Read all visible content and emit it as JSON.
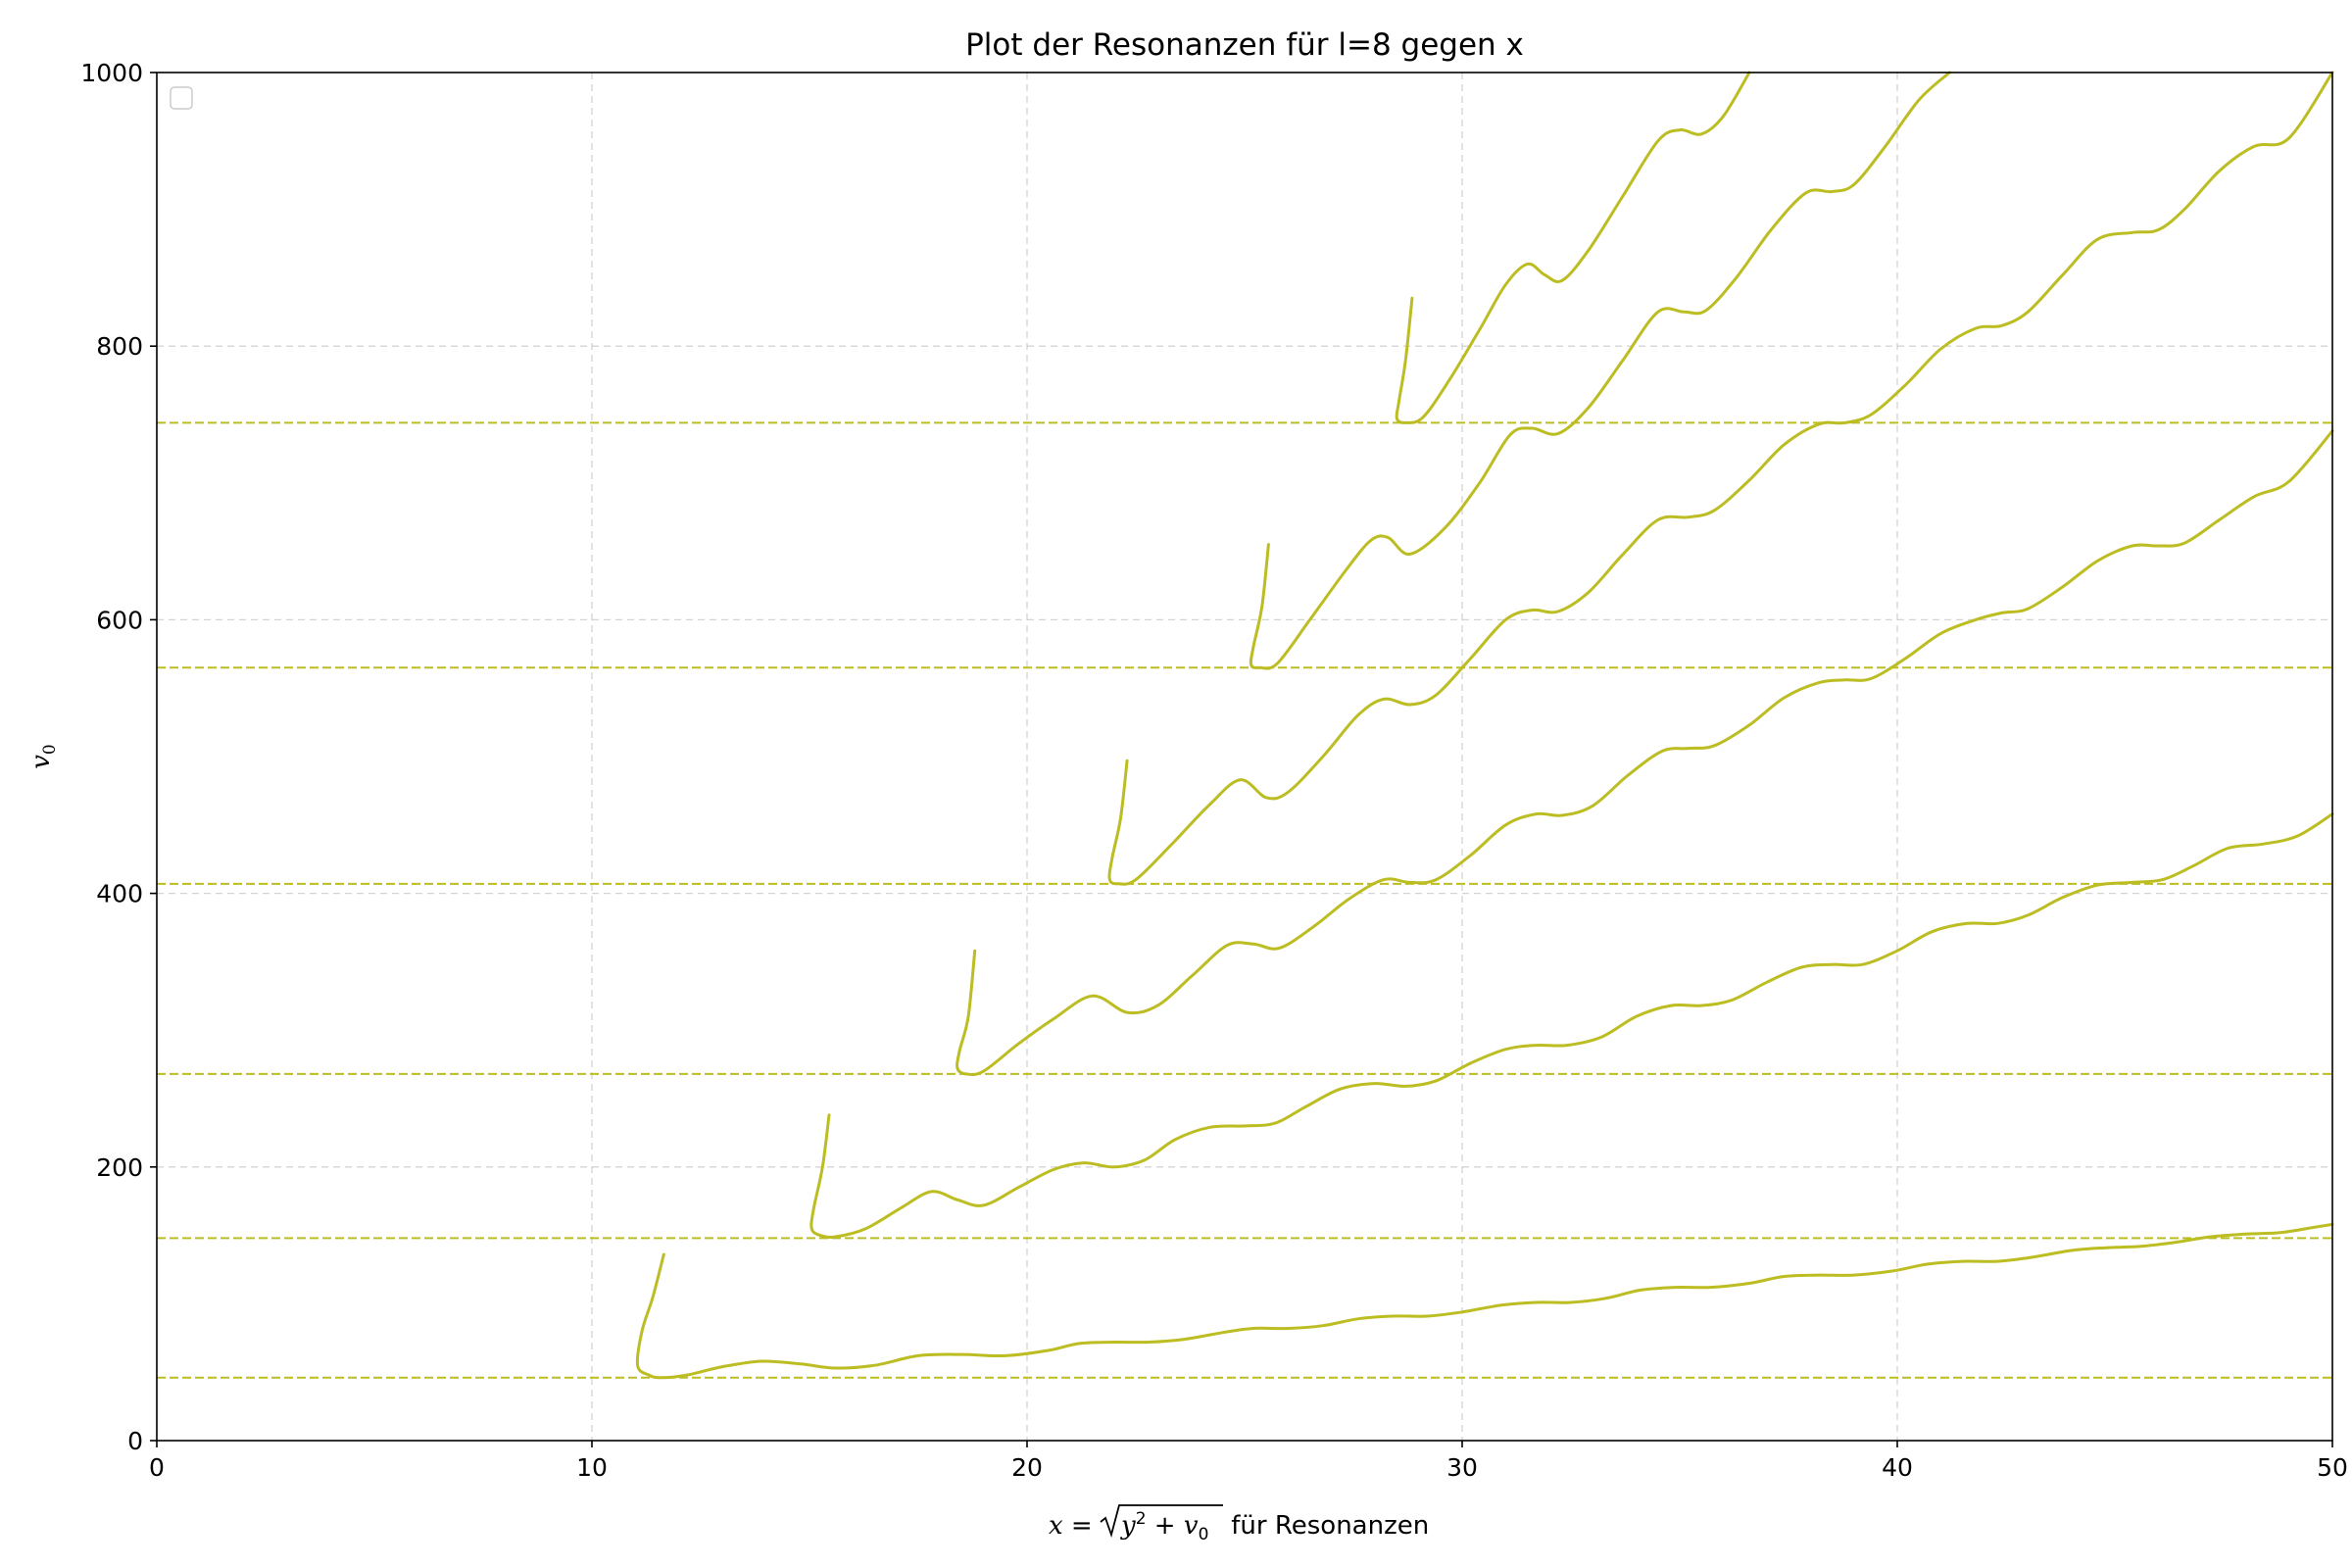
{
  "chart_data": {
    "type": "line",
    "title": "Plot der Resonanzen für l=8 gegen x",
    "xlabel": {
      "math_lhs": "x",
      "math_eq": " = ",
      "math_rad_y": "y",
      "math_rad_sup": "2",
      "math_plus": " + ",
      "math_v": "v",
      "math_v_sub": "0",
      "text": " für Resonanzen"
    },
    "ylabel": {
      "base": "v",
      "sub": "0"
    },
    "xlim": [
      0,
      50
    ],
    "ylim": [
      0,
      1000
    ],
    "xticks": [
      0,
      10,
      20,
      30,
      40,
      50
    ],
    "yticks": [
      0,
      200,
      400,
      600,
      800,
      1000
    ],
    "grid": true,
    "legend": "upper left, empty",
    "color": "#bcbd22",
    "hlines": [
      46,
      148,
      268,
      407,
      565,
      744
    ],
    "series": [
      {
        "x": [
          11.65,
          11.4,
          11.15,
          11.05,
          11.3,
          11.6,
          12.2,
          13.0,
          13.9,
          14.8,
          15.6,
          16.5,
          17.5,
          18.5,
          19.5,
          20.5,
          21.2,
          22.0,
          22.8,
          23.6,
          24.5,
          25.2,
          26.0,
          26.8,
          27.6,
          28.4,
          29.2,
          30.0,
          30.9,
          31.7,
          32.5,
          33.3,
          34.1,
          34.9,
          35.7,
          36.6,
          37.4,
          38.2,
          39.0,
          39.9,
          40.7,
          41.5,
          42.3,
          43.1,
          44.0,
          44.8,
          45.6,
          46.4,
          47.2,
          48.0,
          48.8,
          49.6,
          50.0
        ],
        "y": [
          136,
          105,
          80,
          55,
          48,
          46,
          48,
          54,
          58,
          56,
          53,
          55,
          62,
          63,
          62,
          66,
          71,
          72,
          72,
          74,
          79,
          82,
          82,
          84,
          89,
          91,
          91,
          94,
          99,
          101,
          101,
          104,
          110,
          112,
          112,
          115,
          120,
          121,
          121,
          124,
          129,
          131,
          131,
          134,
          139,
          141,
          142,
          145,
          149,
          151,
          152,
          156,
          158
        ]
      },
      {
        "x": [
          15.45,
          15.3,
          15.1,
          15.05,
          15.25,
          15.6,
          16.3,
          17.1,
          17.8,
          18.4,
          19.0,
          19.8,
          20.6,
          21.3,
          22.0,
          22.7,
          23.4,
          24.2,
          25.0,
          25.7,
          26.4,
          27.2,
          28.0,
          28.7,
          29.4,
          30.2,
          31.0,
          31.7,
          32.4,
          33.2,
          34.0,
          34.8,
          35.5,
          36.2,
          37.0,
          37.8,
          38.5,
          39.2,
          40.0,
          40.8,
          41.6,
          42.3,
          43.0,
          43.8,
          44.6,
          45.4,
          46.1,
          46.8,
          47.6,
          48.4,
          49.2,
          50.0
        ],
        "y": [
          238,
          200,
          170,
          155,
          150,
          149,
          155,
          170,
          182,
          176,
          172,
          185,
          198,
          203,
          200,
          205,
          220,
          229,
          230,
          232,
          244,
          257,
          261,
          259,
          263,
          276,
          286,
          289,
          289,
          295,
          310,
          318,
          318,
          322,
          335,
          346,
          348,
          348,
          358,
          372,
          378,
          378,
          384,
          397,
          406,
          408,
          410,
          420,
          433,
          436,
          442,
          458
        ]
      },
      {
        "x": [
          18.8,
          18.65,
          18.45,
          18.4,
          18.6,
          19.0,
          19.8,
          20.6,
          21.5,
          22.3,
          23.0,
          23.8,
          24.6,
          25.2,
          25.8,
          26.6,
          27.4,
          28.2,
          28.8,
          29.4,
          30.2,
          31.0,
          31.7,
          32.3,
          33.0,
          33.8,
          34.6,
          35.2,
          35.8,
          36.6,
          37.4,
          38.2,
          38.8,
          39.4,
          40.2,
          41.0,
          41.8,
          42.4,
          43.0,
          43.8,
          44.6,
          45.4,
          46.0,
          46.6,
          47.4,
          48.2,
          49.0,
          50.0
        ],
        "y": [
          358,
          310,
          285,
          272,
          268,
          270,
          290,
          308,
          325,
          313,
          318,
          340,
          362,
          363,
          360,
          376,
          396,
          410,
          408,
          410,
          428,
          450,
          458,
          457,
          464,
          486,
          504,
          506,
          508,
          523,
          543,
          554,
          556,
          557,
          572,
          590,
          600,
          605,
          608,
          624,
          643,
          654,
          654,
          656,
          673,
          690,
          701,
          738
        ]
      },
      {
        "x": [
          22.3,
          22.15,
          21.95,
          21.9,
          22.1,
          22.5,
          23.3,
          24.2,
          24.9,
          25.5,
          26.0,
          26.8,
          27.6,
          28.2,
          28.8,
          29.4,
          30.2,
          31.0,
          31.6,
          32.2,
          32.9,
          33.7,
          34.5,
          35.2,
          35.8,
          36.6,
          37.4,
          38.2,
          38.8,
          39.4,
          40.2,
          41.0,
          41.8,
          42.4,
          43.0,
          43.8,
          44.6,
          45.4,
          46.0,
          46.6,
          47.4,
          48.2,
          49.0,
          50.0
        ],
        "y": [
          497,
          455,
          425,
          410,
          407,
          410,
          435,
          465,
          483,
          470,
          474,
          500,
          530,
          542,
          538,
          545,
          572,
          600,
          607,
          606,
          620,
          648,
          673,
          675,
          680,
          702,
          728,
          743,
          744,
          750,
          772,
          798,
          813,
          815,
          825,
          852,
          878,
          883,
          885,
          900,
          928,
          946,
          952,
          1000
        ]
      },
      {
        "x": [
          25.55,
          25.4,
          25.2,
          25.15,
          25.35,
          25.75,
          26.5,
          27.3,
          27.9,
          28.3,
          28.8,
          29.6,
          30.4,
          31.1,
          31.6,
          32.2,
          32.9,
          33.7,
          34.5,
          35.1,
          35.6,
          36.3,
          37.1,
          37.9,
          38.5,
          39.0,
          39.7,
          40.5,
          41.2
        ],
        "y": [
          655,
          610,
          580,
          567,
          565,
          568,
          600,
          635,
          658,
          660,
          648,
          667,
          700,
          735,
          740,
          736,
          755,
          790,
          825,
          825,
          826,
          850,
          885,
          912,
          913,
          918,
          945,
          980,
          1000
        ]
      },
      {
        "x": [
          28.85,
          28.7,
          28.55,
          28.5,
          28.7,
          29.1,
          29.7,
          30.4,
          31.0,
          31.5,
          31.9,
          32.3,
          32.9,
          33.7,
          34.5,
          35.0,
          35.5,
          36.0,
          36.6
        ],
        "y": [
          835,
          790,
          760,
          747,
          744,
          748,
          775,
          812,
          845,
          860,
          852,
          848,
          870,
          910,
          950,
          958,
          955,
          968,
          1000
        ]
      }
    ]
  }
}
